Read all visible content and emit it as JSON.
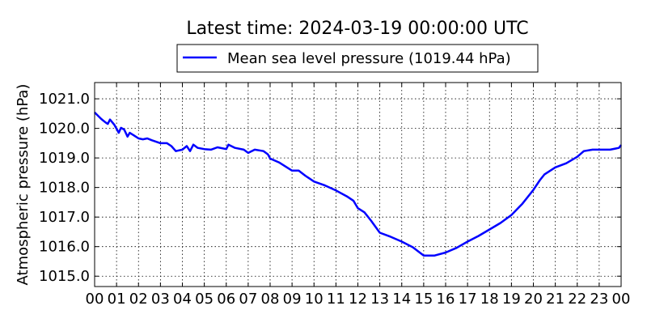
{
  "chart_data": {
    "type": "line",
    "title": "Latest time: 2024-03-19 00:00:00 UTC",
    "xlabel": "",
    "ylabel": "Atmospheric pressure (hPa)",
    "xlim": [
      0,
      24
    ],
    "ylim": [
      1014.65,
      1021.55
    ],
    "xticks": [
      0,
      1,
      2,
      3,
      4,
      5,
      6,
      7,
      8,
      9,
      10,
      11,
      12,
      13,
      14,
      15,
      16,
      17,
      18,
      19,
      20,
      21,
      22,
      23,
      24
    ],
    "xtick_labels": [
      "00",
      "01",
      "02",
      "03",
      "04",
      "05",
      "06",
      "07",
      "08",
      "09",
      "10",
      "11",
      "12",
      "13",
      "14",
      "15",
      "16",
      "17",
      "18",
      "19",
      "20",
      "21",
      "22",
      "23",
      "00"
    ],
    "yticks": [
      1015,
      1016,
      1017,
      1018,
      1019,
      1020,
      1021
    ],
    "ytick_labels": [
      "1015.0",
      "1016.0",
      "1017.0",
      "1018.0",
      "1019.0",
      "1020.0",
      "1021.0"
    ],
    "grid": true,
    "legend_placement": "top-center-outside",
    "series": [
      {
        "name": "Mean sea level pressure (1019.44 hPa)",
        "color": "#0000ff",
        "x": [
          0,
          0.3,
          0.5,
          0.6,
          0.7,
          0.9,
          1.0,
          1.1,
          1.2,
          1.35,
          1.5,
          1.6,
          1.8,
          2.0,
          2.2,
          2.4,
          2.6,
          3.0,
          3.3,
          3.5,
          3.7,
          4.0,
          4.2,
          4.35,
          4.5,
          4.7,
          5.0,
          5.3,
          5.6,
          6.0,
          6.1,
          6.4,
          6.8,
          7.0,
          7.3,
          7.7,
          7.9,
          8.0,
          8.4,
          9.0,
          9.3,
          9.6,
          10.0,
          10.5,
          11.0,
          11.5,
          11.8,
          12.0,
          12.3,
          12.6,
          13.0,
          13.5,
          14.0,
          14.5,
          15.0,
          15.5,
          16.0,
          16.5,
          17.0,
          17.5,
          18.0,
          18.5,
          19.0,
          19.5,
          20.0,
          20.3,
          20.5,
          21.0,
          21.5,
          22.0,
          22.3,
          22.7,
          23.0,
          23.5,
          23.9,
          24.0
        ],
        "y": [
          1020.54,
          1020.32,
          1020.2,
          1020.15,
          1020.3,
          1020.12,
          1019.99,
          1019.85,
          1020.02,
          1019.96,
          1019.72,
          1019.85,
          1019.76,
          1019.66,
          1019.63,
          1019.66,
          1019.6,
          1019.5,
          1019.5,
          1019.4,
          1019.23,
          1019.28,
          1019.4,
          1019.23,
          1019.45,
          1019.34,
          1019.3,
          1019.28,
          1019.36,
          1019.3,
          1019.45,
          1019.34,
          1019.28,
          1019.17,
          1019.28,
          1019.23,
          1019.12,
          1018.98,
          1018.85,
          1018.57,
          1018.57,
          1018.4,
          1018.2,
          1018.07,
          1017.9,
          1017.7,
          1017.55,
          1017.3,
          1017.16,
          1016.88,
          1016.47,
          1016.33,
          1016.17,
          1015.98,
          1015.7,
          1015.7,
          1015.8,
          1015.96,
          1016.17,
          1016.36,
          1016.58,
          1016.8,
          1017.07,
          1017.45,
          1017.92,
          1018.25,
          1018.44,
          1018.68,
          1018.82,
          1019.04,
          1019.23,
          1019.28,
          1019.28,
          1019.28,
          1019.34,
          1019.44
        ]
      }
    ]
  }
}
